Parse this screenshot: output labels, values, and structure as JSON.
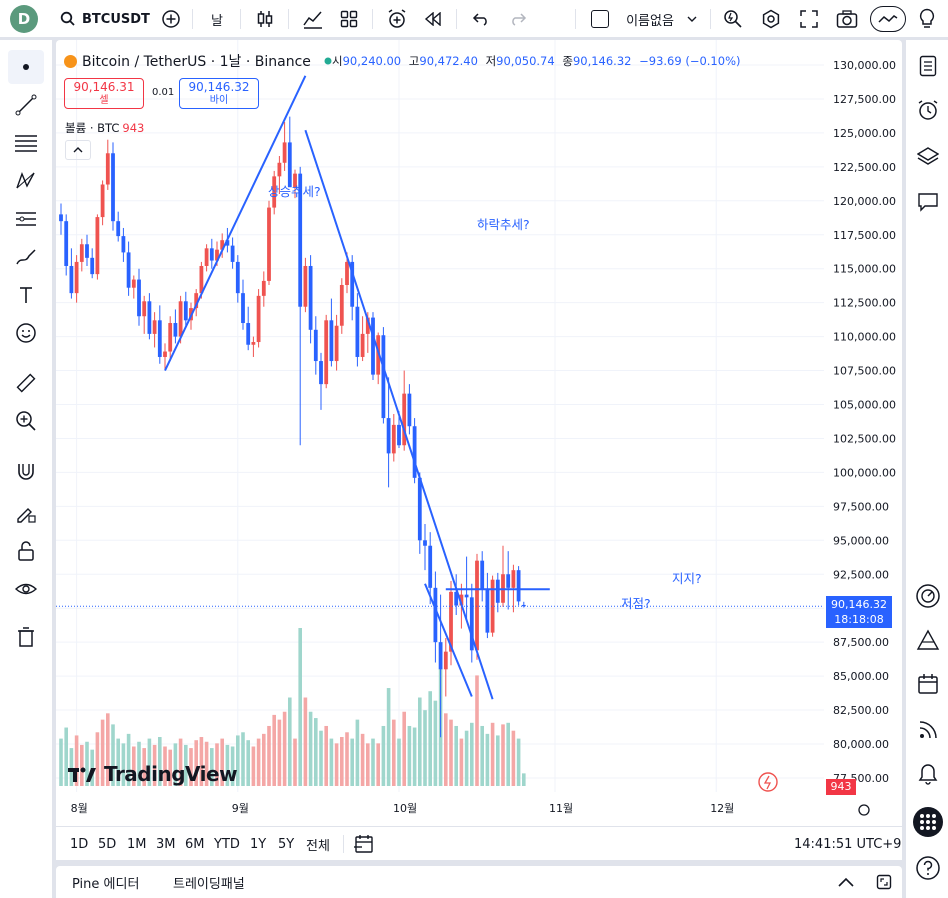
{
  "topbar": {
    "avatar_letter": "D",
    "symbol": "BTCUSDT",
    "interval": "날",
    "layout_name": "이름없음"
  },
  "legend": {
    "title": "Bitcoin / TetherUS · 1날 · Binance",
    "open_label": "시",
    "open": "90,240.00",
    "high_label": "고",
    "high": "90,472.40",
    "low_label": "저",
    "low": "90,050.74",
    "close_label": "종",
    "close": "90,146.32",
    "change": "−93.69 (−0.10%)",
    "sell_price": "90,146.31",
    "sell_label": "셀",
    "spread": "0.01",
    "buy_price": "90,146.32",
    "buy_label": "바이",
    "volume_label": "볼륨 · BTC",
    "volume_value": "943"
  },
  "price_axis": {
    "current_price": "90,146.32",
    "countdown": "18:18:08",
    "volume_tag": "943"
  },
  "annotations": {
    "uptrend": "상승추세?",
    "downtrend": "하락추세?",
    "support": "지지?",
    "bottom": "저점?"
  },
  "logo_text": "TradingView",
  "range_buttons": [
    "1D",
    "5D",
    "1M",
    "3M",
    "6M",
    "YTD",
    "1Y",
    "5Y",
    "전체"
  ],
  "clock": "14:41:51 UTC+9",
  "bottom_tabs": {
    "pine": "Pine 에디터",
    "trading": "트레이딩패널"
  },
  "colors": {
    "up": "#ef5350",
    "down": "#2962ff",
    "vol_up": "#f4a7a6",
    "vol_down": "#9fd6cc",
    "accent": "#2962ff"
  },
  "chart_data": {
    "type": "candlestick",
    "title": "Bitcoin / TetherUS · 1날 · Binance",
    "ylim": [
      76500,
      131000
    ],
    "y_ticks": [
      77500,
      80000,
      82500,
      85000,
      87500,
      90000,
      92500,
      95000,
      97500,
      100000,
      102500,
      105000,
      107500,
      110000,
      112500,
      115000,
      117500,
      120000,
      122500,
      125000,
      127500,
      130000
    ],
    "x_month_labels": [
      "8월",
      "9월",
      "10월",
      "11월",
      "12월"
    ],
    "x_month_bar_index": [
      3,
      34,
      65,
      95,
      126
    ],
    "candles_ohlc": [
      [
        119000,
        119800,
        117500,
        118500
      ],
      [
        118500,
        119000,
        114500,
        115200
      ],
      [
        115200,
        116500,
        112800,
        113200
      ],
      [
        113200,
        116000,
        112500,
        115500
      ],
      [
        115500,
        117200,
        114800,
        116800
      ],
      [
        116800,
        117500,
        115200,
        115800
      ],
      [
        115800,
        116500,
        114300,
        114600
      ],
      [
        114600,
        119000,
        114200,
        118800
      ],
      [
        118800,
        121500,
        118200,
        121200
      ],
      [
        121200,
        124500,
        120800,
        123500
      ],
      [
        123500,
        124300,
        117800,
        118500
      ],
      [
        118500,
        119200,
        117000,
        117400
      ],
      [
        117400,
        118000,
        115500,
        116200
      ],
      [
        116200,
        117000,
        113000,
        113600
      ],
      [
        113600,
        114500,
        112800,
        114200
      ],
      [
        114200,
        115000,
        110800,
        111500
      ],
      [
        111500,
        113000,
        110200,
        112600
      ],
      [
        112600,
        113200,
        109800,
        110200
      ],
      [
        110200,
        111800,
        109200,
        111200
      ],
      [
        111200,
        112300,
        108000,
        108500
      ],
      [
        108500,
        109500,
        107500,
        108900
      ],
      [
        108900,
        111500,
        108200,
        111000
      ],
      [
        111000,
        112000,
        109500,
        110000
      ],
      [
        110000,
        113000,
        109500,
        112600
      ],
      [
        112600,
        113300,
        110800,
        111200
      ],
      [
        111200,
        112500,
        110500,
        112100
      ],
      [
        112100,
        113500,
        111500,
        113200
      ],
      [
        113200,
        115500,
        112800,
        115200
      ],
      [
        115200,
        116800,
        114800,
        116500
      ],
      [
        116500,
        117200,
        115000,
        115600
      ],
      [
        115600,
        117000,
        115200,
        116400
      ],
      [
        116400,
        117600,
        115800,
        117100
      ],
      [
        117100,
        118000,
        116200,
        116700
      ],
      [
        116700,
        117300,
        115000,
        115500
      ],
      [
        115500,
        116000,
        112500,
        113200
      ],
      [
        113200,
        114200,
        110500,
        111000
      ],
      [
        111000,
        112200,
        109000,
        109400
      ],
      [
        109400,
        110000,
        108500,
        109600
      ],
      [
        109600,
        113500,
        109200,
        113000
      ],
      [
        113000,
        114800,
        112200,
        114100
      ],
      [
        114100,
        120000,
        113800,
        119500
      ],
      [
        119500,
        122200,
        119000,
        121800
      ],
      [
        121800,
        123300,
        120500,
        122800
      ],
      [
        122800,
        125800,
        122200,
        124300
      ],
      [
        124300,
        126200,
        123000,
        121000
      ],
      [
        121000,
        122300,
        120200,
        122000
      ],
      [
        122000,
        122500,
        102000,
        112200
      ],
      [
        112200,
        115800,
        111800,
        115200
      ],
      [
        115200,
        116000,
        109500,
        110500
      ],
      [
        110500,
        111500,
        107200,
        108200
      ],
      [
        108200,
        108800,
        104600,
        106500
      ],
      [
        106500,
        111600,
        106200,
        111200
      ],
      [
        111200,
        112800,
        107800,
        108200
      ],
      [
        108200,
        111600,
        107500,
        110800
      ],
      [
        110800,
        114300,
        110200,
        113800
      ],
      [
        113800,
        116200,
        113200,
        115500
      ],
      [
        115500,
        116000,
        111200,
        112200
      ],
      [
        112200,
        113200,
        107800,
        108500
      ],
      [
        108500,
        111500,
        108200,
        110200
      ],
      [
        110200,
        111800,
        108800,
        111400
      ],
      [
        111400,
        111800,
        106800,
        107200
      ],
      [
        107200,
        110300,
        106500,
        110100
      ],
      [
        110100,
        110700,
        103600,
        104000
      ],
      [
        104000,
        107000,
        98900,
        101400
      ],
      [
        101400,
        104300,
        100800,
        103500
      ],
      [
        103500,
        104500,
        101800,
        102000
      ],
      [
        102000,
        107500,
        101600,
        105800
      ],
      [
        105800,
        106500,
        102800,
        103400
      ],
      [
        103400,
        104000,
        99200,
        99600
      ],
      [
        99600,
        100000,
        94000,
        95000
      ],
      [
        95000,
        96200,
        92800,
        94600
      ],
      [
        94600,
        95600,
        90300,
        91500
      ],
      [
        91500,
        92700,
        86000,
        87500
      ],
      [
        87500,
        91000,
        80500,
        85500
      ],
      [
        85500,
        87800,
        83500,
        86800
      ],
      [
        86800,
        92000,
        85800,
        91200
      ],
      [
        91200,
        92500,
        89500,
        90200
      ],
      [
        90200,
        91800,
        88500,
        91000
      ],
      [
        91000,
        93800,
        89200,
        90800
      ],
      [
        90800,
        91800,
        86000,
        86900
      ],
      [
        86900,
        94000,
        86200,
        93500
      ],
      [
        93500,
        94200,
        90500,
        91400
      ],
      [
        91400,
        92600,
        87800,
        88200
      ],
      [
        88200,
        92400,
        87900,
        92100
      ],
      [
        92100,
        92600,
        89700,
        90400
      ],
      [
        90400,
        94600,
        90100,
        92500
      ],
      [
        92500,
        94200,
        89900,
        91500
      ],
      [
        91500,
        93200,
        89700,
        92800
      ],
      [
        92800,
        93100,
        90200,
        90500
      ],
      [
        90240,
        90472,
        90050,
        90146
      ]
    ],
    "volume": [
      300,
      370,
      240,
      320,
      260,
      280,
      230,
      340,
      420,
      460,
      390,
      300,
      270,
      330,
      250,
      280,
      240,
      300,
      260,
      310,
      250,
      230,
      270,
      300,
      260,
      240,
      290,
      310,
      280,
      240,
      270,
      300,
      260,
      250,
      320,
      340,
      290,
      250,
      300,
      330,
      380,
      450,
      420,
      470,
      560,
      300,
      1000,
      560,
      470,
      430,
      350,
      380,
      300,
      270,
      310,
      340,
      300,
      420,
      330,
      270,
      300,
      270,
      380,
      620,
      420,
      300,
      470,
      380,
      370,
      560,
      480,
      600,
      540,
      740,
      460,
      420,
      380,
      300,
      350,
      400,
      700,
      380,
      330,
      400,
      320,
      390,
      400,
      350,
      300,
      80
    ],
    "trendlines": [
      {
        "label": "상승추세?",
        "from": [
          107500,
          20
        ],
        "to": [
          129200,
          47
        ]
      },
      {
        "label": "하락추세?",
        "from": [
          125200,
          47
        ],
        "to": [
          83300,
          83
        ]
      },
      {
        "label": "지지?",
        "from": [
          91400,
          74
        ],
        "to": [
          91400,
          94
        ]
      },
      {
        "label": "저점?",
        "from": [
          91800,
          70
        ],
        "to": [
          83500,
          79
        ]
      }
    ],
    "current_price_line": 90146.32
  }
}
